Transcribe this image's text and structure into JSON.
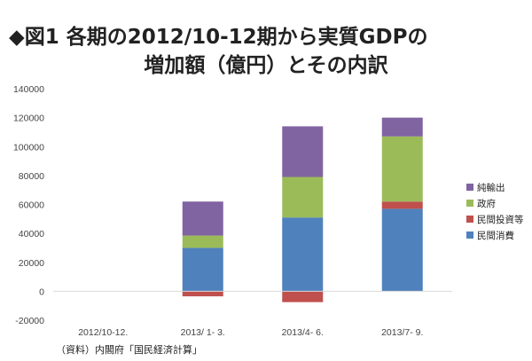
{
  "title_line1": "◆図1  各期の2012/10-12期から実質GDPの",
  "title_line2": "増加額（億円）とその内訳",
  "source": "（資料）内閣府「国民経済計算」",
  "chart_data": {
    "type": "bar",
    "stacked": true,
    "categories": [
      "2012/10-12.",
      "2013/ 1- 3.",
      "2013/4- 6.",
      "2013/7- 9."
    ],
    "series": [
      {
        "name": "民間消費",
        "color": "#4f81bd",
        "values": [
          0,
          30000,
          51000,
          57000
        ]
      },
      {
        "name": "民間投資等",
        "color": "#c0504d",
        "values": [
          0,
          -3500,
          -7500,
          5000
        ]
      },
      {
        "name": "政府",
        "color": "#9bbb59",
        "values": [
          0,
          8500,
          28000,
          45000
        ]
      },
      {
        "name": "純輸出",
        "color": "#8064a2",
        "values": [
          0,
          23500,
          35000,
          13000
        ]
      }
    ],
    "legend_order": [
      "純輸出",
      "政府",
      "民間投資等",
      "民間消費"
    ],
    "legend_position": "right",
    "ylim": [
      -20000,
      140000
    ],
    "yticks": [
      -20000,
      0,
      20000,
      40000,
      60000,
      80000,
      100000,
      120000,
      140000
    ],
    "grid": false
  }
}
